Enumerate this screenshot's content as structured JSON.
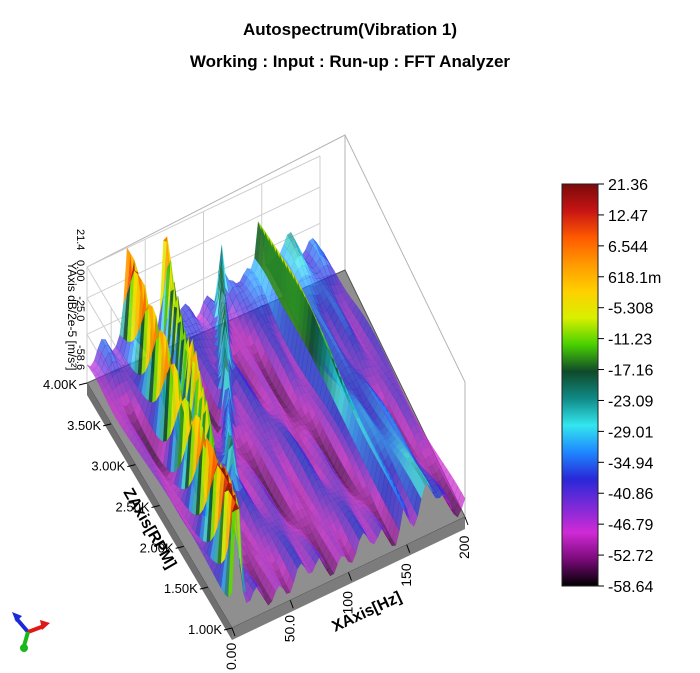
{
  "chart_data": {
    "type": "surface3d",
    "title": "Autospectrum(Vibration 1)",
    "subtitle": "Working : Input : Run-up : FFT Analyzer",
    "xlabel": "XAxis[Hz]",
    "ylabel": "YAxis dB/2e-5 [m/s²]",
    "zlabel": "ZAxis[RPM]",
    "x_ticks": [
      "0.00",
      "50.0",
      "100",
      "150",
      "200"
    ],
    "y_ticks": [
      "-58.6",
      "-25.0",
      "0.00",
      "21.4"
    ],
    "z_ticks": [
      "1.00K",
      "1.50K",
      "2.00K",
      "2.50K",
      "3.00K",
      "3.50K",
      "4.00K"
    ],
    "xlim": [
      0,
      200
    ],
    "ylim": [
      -58.6,
      21.4
    ],
    "zlim": [
      1000,
      4000
    ],
    "colorbar": {
      "labels": [
        "21.36",
        "12.47",
        "6.544",
        "618.1m",
        "-5.308",
        "-11.23",
        "-17.16",
        "-23.09",
        "-29.01",
        "-34.94",
        "-40.86",
        "-46.79",
        "-52.72",
        "-58.64"
      ],
      "colors": [
        "#7a0a0a",
        "#c81414",
        "#ff5a00",
        "#ff9a00",
        "#ffd000",
        "#d8f000",
        "#48d000",
        "#0f4a2a",
        "#108a86",
        "#33e6ee",
        "#1e88ff",
        "#2828d8",
        "#7a2ad8",
        "#d02ad6",
        "#7a0a7a",
        "#000000"
      ]
    }
  }
}
